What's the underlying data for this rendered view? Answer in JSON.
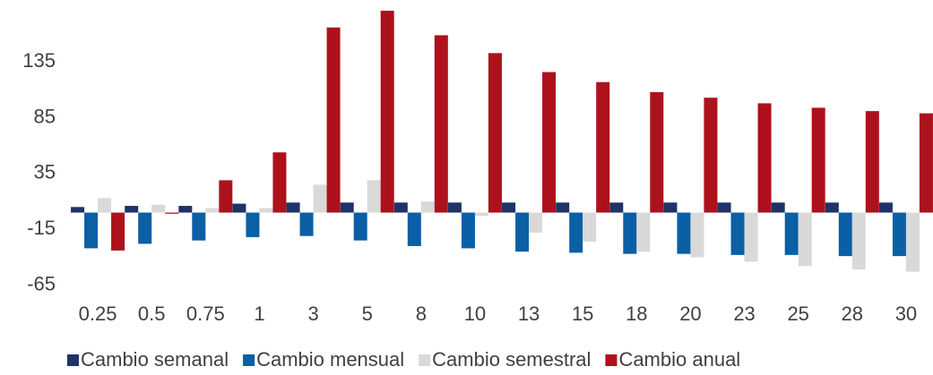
{
  "chart_data": {
    "type": "bar",
    "categories": [
      "0.25",
      "0.5",
      "0.75",
      "1",
      "3",
      "5",
      "8",
      "10",
      "13",
      "15",
      "18",
      "20",
      "23",
      "25",
      "28",
      "30"
    ],
    "series": [
      {
        "name": "Cambio semanal",
        "color": "#1f3368",
        "values": [
          5,
          6,
          6,
          8,
          9,
          9,
          9,
          9,
          9,
          9,
          9,
          9,
          9,
          9,
          9,
          9
        ]
      },
      {
        "name": "Cambio mensual",
        "color": "#0b5fa5",
        "values": [
          -32,
          -28,
          -25,
          -22,
          -21,
          -25,
          -30,
          -32,
          -35,
          -36,
          -37,
          -37,
          -38,
          -38,
          -39,
          -39
        ]
      },
      {
        "name": "Cambio semestral",
        "color": "#d9d9d9",
        "values": [
          13,
          7,
          4,
          4,
          25,
          29,
          10,
          -3,
          -18,
          -26,
          -35,
          -40,
          -44,
          -48,
          -51,
          -53
        ]
      },
      {
        "name": "Cambio anual",
        "color": "#ad111c",
        "values": [
          -34,
          -1,
          29,
          54,
          166,
          181,
          159,
          143,
          126,
          117,
          108,
          103,
          98,
          94,
          91,
          89
        ]
      }
    ],
    "ylim": [
      -75,
      185
    ],
    "yticks": [
      -65,
      -15,
      35,
      85,
      135
    ],
    "grid": false,
    "legend": "bottom"
  }
}
